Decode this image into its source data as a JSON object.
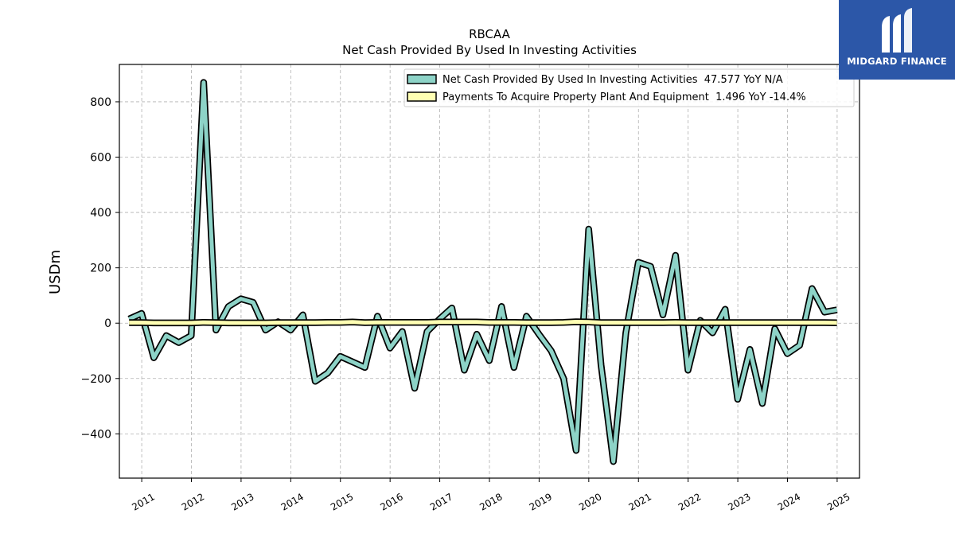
{
  "chart_data": {
    "type": "line",
    "title": "RBCAA",
    "subtitle": "Net Cash Provided By Used In Investing Activities",
    "ylabel": "USDm",
    "xlabel": "",
    "ylim": [
      -560,
      935
    ],
    "xlim": [
      2010.55,
      2025.45
    ],
    "yticks": [
      -400,
      -200,
      0,
      200,
      400,
      600,
      800
    ],
    "yticklabels": [
      "−400",
      "−200",
      "0",
      "200",
      "400",
      "600",
      "800"
    ],
    "xticks": [
      2011,
      2012,
      2013,
      2014,
      2015,
      2016,
      2017,
      2018,
      2019,
      2020,
      2021,
      2022,
      2023,
      2024,
      2025
    ],
    "xticklabels": [
      "2011",
      "2012",
      "2013",
      "2014",
      "2015",
      "2016",
      "2017",
      "2018",
      "2019",
      "2020",
      "2021",
      "2022",
      "2023",
      "2024",
      "2025"
    ],
    "grid": true,
    "legend_position": "top-right",
    "series": [
      {
        "name": "Net Cash Provided By Used In Investing Activities  47.577 YoY N/A",
        "color": "#8dd3c7",
        "x": [
          "2010-09-30",
          "2010-12-31",
          "2011-03-31",
          "2011-06-30",
          "2011-09-30",
          "2011-12-31",
          "2012-03-31",
          "2012-06-30",
          "2012-09-30",
          "2012-12-31",
          "2013-03-31",
          "2013-06-30",
          "2013-09-30",
          "2013-12-31",
          "2014-03-31",
          "2014-06-30",
          "2014-09-30",
          "2014-12-31",
          "2015-03-31",
          "2015-06-30",
          "2015-09-30",
          "2015-12-31",
          "2016-03-31",
          "2016-06-30",
          "2016-09-30",
          "2016-12-31",
          "2017-03-31",
          "2017-06-30",
          "2017-09-30",
          "2017-12-31",
          "2018-03-31",
          "2018-06-30",
          "2018-09-30",
          "2018-12-31",
          "2019-03-31",
          "2019-06-30",
          "2019-09-30",
          "2019-12-31",
          "2020-03-31",
          "2020-06-30",
          "2020-09-30",
          "2020-12-31",
          "2021-03-31",
          "2021-06-30",
          "2021-09-30",
          "2021-12-31",
          "2022-03-31",
          "2022-06-30",
          "2022-09-30",
          "2022-12-31",
          "2023-03-31",
          "2023-06-30",
          "2023-09-30",
          "2023-12-31",
          "2024-03-31",
          "2024-06-30",
          "2024-09-30",
          "2024-12-31"
        ],
        "values": [
          15,
          35,
          -125,
          -45,
          -70,
          -45,
          870,
          -25,
          60,
          88,
          75,
          -25,
          5,
          -25,
          30,
          -210,
          -180,
          -120,
          -140,
          -160,
          25,
          -90,
          -30,
          -235,
          -30,
          15,
          55,
          -170,
          -40,
          -135,
          60,
          -160,
          25,
          -40,
          -100,
          -200,
          -460,
          340,
          -150,
          -500,
          -35,
          220,
          205,
          30,
          245,
          -170,
          10,
          -35,
          50,
          -275,
          -95,
          -290,
          -20,
          -110,
          -80,
          125,
          40,
          48
        ]
      },
      {
        "name": "Payments To Acquire Property Plant And Equipment  1.496 YoY -14.4%",
        "color": "#ffffb3",
        "x": [
          "2010-09-30",
          "2010-12-31",
          "2011-03-31",
          "2011-06-30",
          "2011-09-30",
          "2011-12-31",
          "2012-03-31",
          "2012-06-30",
          "2012-09-30",
          "2012-12-31",
          "2013-03-31",
          "2013-06-30",
          "2013-09-30",
          "2013-12-31",
          "2014-03-31",
          "2014-06-30",
          "2014-09-30",
          "2014-12-31",
          "2015-03-31",
          "2015-06-30",
          "2015-09-30",
          "2015-12-31",
          "2016-03-31",
          "2016-06-30",
          "2016-09-30",
          "2016-12-31",
          "2017-03-31",
          "2017-06-30",
          "2017-09-30",
          "2017-12-31",
          "2018-03-31",
          "2018-06-30",
          "2018-09-30",
          "2018-12-31",
          "2019-03-31",
          "2019-06-30",
          "2019-09-30",
          "2019-12-31",
          "2020-03-31",
          "2020-06-30",
          "2020-09-30",
          "2020-12-31",
          "2021-03-31",
          "2021-06-30",
          "2021-09-30",
          "2021-12-31",
          "2022-03-31",
          "2022-06-30",
          "2022-09-30",
          "2022-12-31",
          "2023-03-31",
          "2023-06-30",
          "2023-09-30",
          "2023-12-31",
          "2024-03-31",
          "2024-06-30",
          "2024-09-30",
          "2024-12-31"
        ],
        "values": [
          2,
          2,
          1,
          1,
          1,
          1,
          3,
          2,
          1,
          1,
          1,
          1,
          2,
          2,
          2,
          2,
          3,
          3,
          4,
          2,
          3,
          3,
          3,
          3,
          3,
          4,
          4,
          4,
          4,
          3,
          3,
          3,
          2,
          2,
          2,
          3,
          5,
          4,
          2,
          2,
          2,
          2,
          2,
          2,
          3,
          2,
          2,
          2,
          2,
          2,
          2,
          2,
          2,
          2,
          2,
          2,
          2,
          1.5
        ]
      }
    ]
  },
  "logo": {
    "name": "MIDGARD FINANCE",
    "background": "#2c57a8"
  }
}
